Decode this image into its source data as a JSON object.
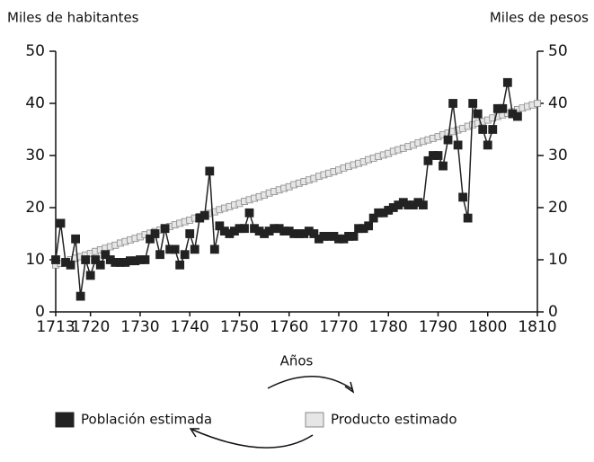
{
  "chart_data": {
    "type": "line",
    "ylabel": "Miles de habitantes",
    "y2label": "Miles de pesos",
    "xlabel": "Años",
    "xlim": [
      1713,
      1810
    ],
    "xticks": [
      1713,
      1720,
      1730,
      1740,
      1750,
      1760,
      1770,
      1780,
      1790,
      1800,
      1810
    ],
    "ylim": [
      0,
      50
    ],
    "yticks": [
      0,
      10,
      20,
      30,
      40,
      50
    ],
    "y2lim": [
      0,
      50
    ],
    "y2ticks": [
      0,
      10,
      20,
      30,
      40,
      50
    ],
    "grid": false,
    "legend": "bottom",
    "x": [
      1713,
      1714,
      1715,
      1716,
      1717,
      1718,
      1719,
      1720,
      1721,
      1722,
      1723,
      1724,
      1725,
      1726,
      1727,
      1728,
      1729,
      1730,
      1731,
      1732,
      1733,
      1734,
      1735,
      1736,
      1737,
      1738,
      1739,
      1740,
      1741,
      1742,
      1743,
      1744,
      1745,
      1746,
      1747,
      1748,
      1749,
      1750,
      1751,
      1752,
      1753,
      1754,
      1755,
      1756,
      1757,
      1758,
      1759,
      1760,
      1761,
      1762,
      1763,
      1764,
      1765,
      1766,
      1767,
      1768,
      1769,
      1770,
      1771,
      1772,
      1773,
      1774,
      1775,
      1776,
      1777,
      1778,
      1779,
      1780,
      1781,
      1782,
      1783,
      1784,
      1785,
      1786,
      1787,
      1788,
      1789,
      1790,
      1791,
      1792,
      1793,
      1794,
      1795,
      1796,
      1797,
      1798,
      1799,
      1800,
      1801,
      1802,
      1803,
      1804,
      1805,
      1806,
      1807,
      1808,
      1809,
      1810
    ],
    "series": [
      {
        "name": "Producto estimado",
        "color": "#e6e6e6",
        "axis": "y2",
        "values": [
          9.0,
          9.3,
          9.6,
          10.0,
          10.3,
          10.6,
          10.9,
          11.2,
          11.6,
          11.9,
          12.2,
          12.5,
          12.8,
          13.2,
          13.5,
          13.8,
          14.1,
          14.4,
          14.8,
          15.1,
          15.4,
          15.7,
          16.0,
          16.4,
          16.7,
          17.0,
          17.3,
          17.6,
          18.0,
          18.3,
          18.6,
          18.9,
          19.2,
          19.6,
          19.9,
          20.2,
          20.5,
          20.8,
          21.2,
          21.5,
          21.8,
          22.1,
          22.4,
          22.8,
          23.1,
          23.4,
          23.7,
          24.0,
          24.4,
          24.7,
          25.0,
          25.3,
          25.6,
          26.0,
          26.3,
          26.6,
          26.9,
          27.2,
          27.6,
          27.9,
          28.2,
          28.5,
          28.8,
          29.2,
          29.5,
          29.8,
          30.1,
          30.4,
          30.8,
          31.1,
          31.4,
          31.7,
          32.0,
          32.4,
          32.7,
          33.0,
          33.3,
          33.6,
          34.0,
          34.3,
          34.6,
          34.9,
          35.2,
          35.6,
          35.9,
          36.2,
          36.5,
          36.8,
          37.2,
          37.5,
          37.8,
          38.1,
          38.4,
          38.8,
          39.1,
          39.4,
          39.7,
          40.0
        ]
      },
      {
        "name": "Población estimada",
        "color": "#222222",
        "values": [
          10,
          17,
          9.5,
          9,
          14,
          3,
          10,
          7,
          10,
          9,
          11,
          10,
          9.5,
          9.5,
          9.5,
          9.8,
          9.8,
          10,
          10,
          14,
          15,
          11,
          16,
          12,
          12,
          9,
          11,
          15,
          12,
          18,
          18.5,
          27,
          12,
          16.5,
          15.5,
          15,
          15.5,
          16,
          16,
          19,
          16,
          15.5,
          15,
          15.5,
          16,
          16,
          15.5,
          15.5,
          15,
          15,
          15,
          15.5,
          15,
          14,
          14.5,
          14.5,
          14.5,
          14,
          14,
          14.5,
          14.5,
          16,
          16,
          16.5,
          18,
          19,
          19,
          19.5,
          20,
          20.5,
          21,
          20.5,
          20.5,
          21,
          20.5,
          29,
          30,
          30,
          28,
          33,
          40,
          32,
          22,
          18,
          40,
          38,
          35,
          32,
          35,
          39,
          39,
          44,
          38,
          37.5,
          null,
          null,
          null,
          null
        ]
      }
    ]
  }
}
